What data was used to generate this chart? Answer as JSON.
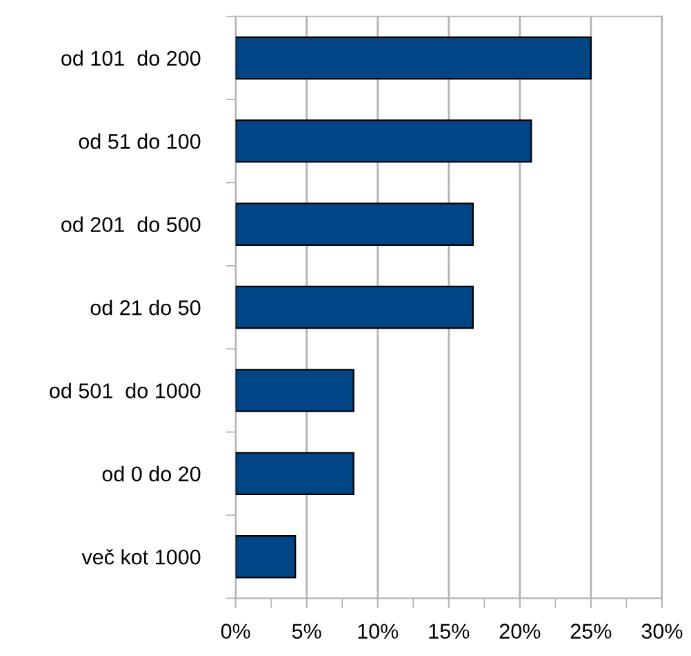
{
  "chart_data": {
    "type": "bar",
    "orientation": "horizontal",
    "categories": [
      "od 101  do 200",
      "od 51 do 100",
      "od 201  do 500",
      "od 21 do 50",
      "od 501  do 1000",
      "od 0 do 20",
      "več kot 1000"
    ],
    "values": [
      25.0,
      20.8,
      16.7,
      16.7,
      8.3,
      8.3,
      4.2
    ],
    "color": "#004586",
    "xlim": [
      0,
      30
    ],
    "xticks": [
      {
        "value": 0,
        "label": "0%"
      },
      {
        "value": 2.5,
        "label": null
      },
      {
        "value": 5,
        "label": "5%"
      },
      {
        "value": 7.5,
        "label": null
      },
      {
        "value": 10,
        "label": "10%"
      },
      {
        "value": 12.5,
        "label": null
      },
      {
        "value": 15,
        "label": "15%"
      },
      {
        "value": 17.5,
        "label": null
      },
      {
        "value": 20,
        "label": "20%"
      },
      {
        "value": 22.5,
        "label": null
      },
      {
        "value": 25,
        "label": "25%"
      },
      {
        "value": 27.5,
        "label": null
      },
      {
        "value": 30,
        "label": "30%"
      }
    ],
    "grid": "x",
    "legend": false
  }
}
